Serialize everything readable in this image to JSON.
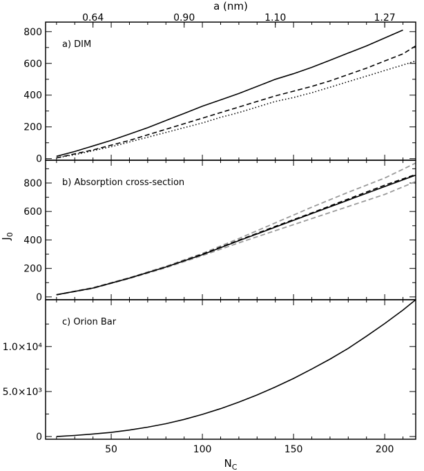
{
  "chart_data": {
    "type": "line",
    "xlabel": "N",
    "xlabel_sub": "C",
    "x_range": [
      14,
      217
    ],
    "x_ticks": [
      "50",
      "100",
      "150",
      "200"
    ],
    "x_tick_values": [
      50,
      100,
      150,
      200
    ],
    "top_axis": {
      "label": "a (nm)",
      "ticks": [
        "0.64",
        "0.90",
        "1.10",
        "1.27"
      ],
      "tick_positions_nc": [
        40,
        90,
        140,
        200
      ]
    },
    "ylabel": "J",
    "ylabel_sub": "0",
    "panels": [
      {
        "label": "a) DIM",
        "ylim": [
          -10,
          860
        ],
        "y_ticks": [
          "0",
          "200",
          "400",
          "600",
          "800"
        ],
        "y_tick_values": [
          0,
          200,
          400,
          600,
          800
        ],
        "series": [
          {
            "style": "solid",
            "color": "#000000",
            "x": [
              20,
              30,
              40,
              50,
              60,
              70,
              80,
              90,
              100,
              110,
              120,
              130,
              140,
              150,
              160,
              170,
              180,
              190,
              200,
              210
            ],
            "y": [
              15,
              45,
              80,
              115,
              155,
              195,
              240,
              285,
              330,
              370,
              410,
              455,
              500,
              535,
              575,
              620,
              665,
              710,
              760,
              810
            ]
          },
          {
            "style": "dashed",
            "color": "#000000",
            "x": [
              20,
              30,
              40,
              50,
              60,
              70,
              80,
              90,
              100,
              110,
              120,
              130,
              140,
              150,
              160,
              170,
              180,
              190,
              200,
              210,
              217
            ],
            "y": [
              5,
              30,
              55,
              85,
              115,
              150,
              185,
              220,
              255,
              290,
              325,
              360,
              395,
              425,
              455,
              490,
              530,
              570,
              615,
              660,
              710
            ]
          },
          {
            "style": "dotted",
            "color": "#000000",
            "x": [
              20,
              30,
              40,
              50,
              60,
              70,
              80,
              90,
              100,
              110,
              120,
              130,
              140,
              150,
              160,
              170,
              180,
              190,
              200,
              210,
              217
            ],
            "y": [
              5,
              25,
              50,
              75,
              105,
              135,
              165,
              195,
              225,
              260,
              290,
              325,
              360,
              385,
              415,
              450,
              485,
              520,
              555,
              590,
              615
            ]
          }
        ]
      },
      {
        "label": "b) Absorption cross-section",
        "ylim": [
          -20,
          960
        ],
        "y_ticks": [
          "0",
          "200",
          "400",
          "600",
          "800"
        ],
        "y_tick_values": [
          0,
          200,
          400,
          600,
          800
        ],
        "series": [
          {
            "style": "dashed",
            "color": "#999999",
            "x": [
              20,
              40,
              60,
              80,
              100,
              120,
              140,
              160,
              180,
              200,
              217
            ],
            "y": [
              15,
              65,
              135,
              215,
              305,
              410,
              520,
              630,
              735,
              835,
              940
            ]
          },
          {
            "style": "dashed",
            "color": "#999999",
            "x": [
              20,
              40,
              60,
              80,
              100,
              120,
              140,
              160,
              180,
              200,
              217
            ],
            "y": [
              15,
              60,
              130,
              205,
              290,
              380,
              465,
              550,
              635,
              720,
              810
            ]
          },
          {
            "style": "solid",
            "color": "#000000",
            "x": [
              20,
              40,
              60,
              80,
              100,
              120,
              140,
              160,
              180,
              200,
              217
            ],
            "y": [
              15,
              62,
              132,
              210,
              297,
              395,
              490,
              585,
              680,
              775,
              855
            ]
          },
          {
            "style": "dashed",
            "color": "#000000",
            "x": [
              20,
              40,
              60,
              80,
              100,
              120,
              140,
              160,
              180,
              200,
              217
            ],
            "y": [
              15,
              62,
              132,
              210,
              300,
              398,
              495,
              590,
              688,
              785,
              860
            ]
          }
        ]
      },
      {
        "label": "c) Orion Bar",
        "ylim": [
          -300,
          15200
        ],
        "y_ticks": [
          "0",
          "5.0×10³",
          "1.0×10⁴"
        ],
        "y_tick_values": [
          0,
          5000,
          10000
        ],
        "series": [
          {
            "style": "solid",
            "color": "#000000",
            "x": [
              20,
              30,
              40,
              50,
              60,
              70,
              80,
              90,
              100,
              110,
              120,
              130,
              140,
              150,
              160,
              170,
              180,
              190,
              200,
              210,
              217
            ],
            "y": [
              0,
              120,
              280,
              460,
              720,
              1040,
              1430,
              1900,
              2460,
              3100,
              3820,
              4620,
              5500,
              6450,
              7500,
              8600,
              9800,
              11150,
              12550,
              14050,
              15200
            ]
          }
        ]
      }
    ]
  }
}
